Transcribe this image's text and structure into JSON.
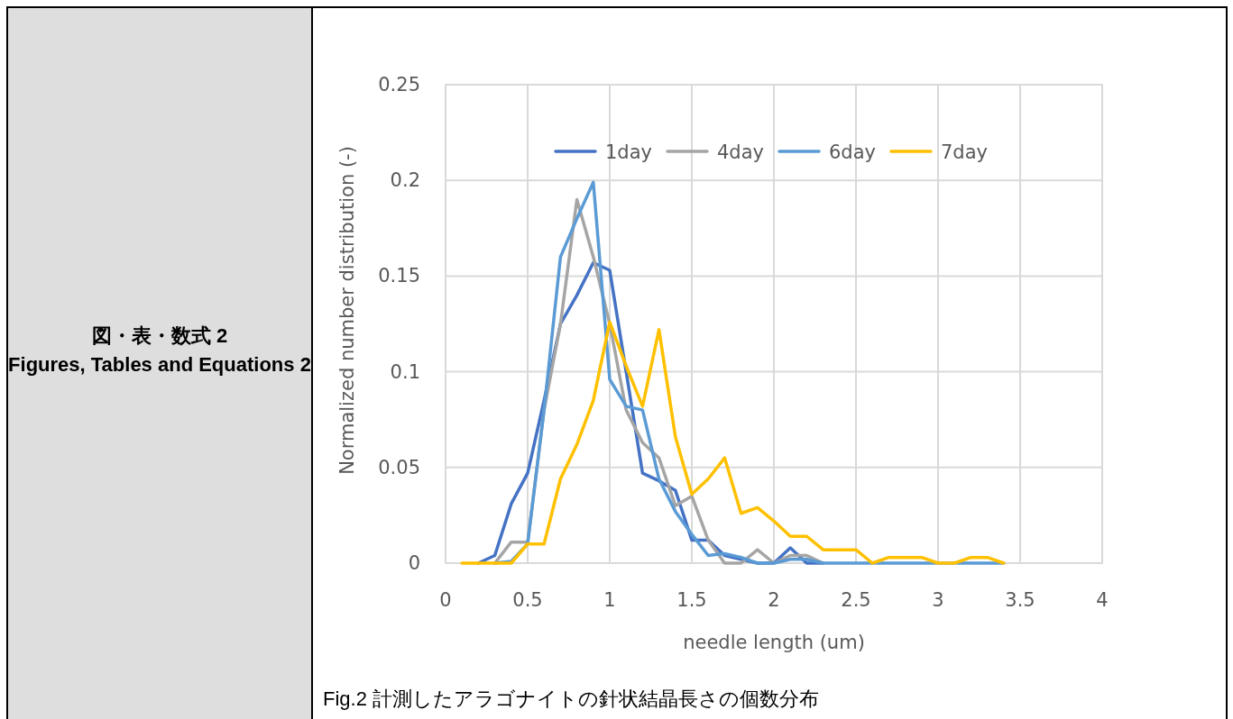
{
  "chart_data": {
    "type": "line",
    "xlabel": "needle length (um)",
    "ylabel": "Normalized number distribution (-)",
    "annotations": [
      "図・表・数式 2",
      "Figures, Tables and Equations 2",
      "Fig.2 計測したアラゴナイトの針状結晶長さの個数分布"
    ],
    "xlim": [
      0,
      4
    ],
    "xticks": [
      0,
      0.5,
      1,
      1.5,
      2,
      2.5,
      3,
      3.5,
      4
    ],
    "ylim": [
      0,
      0.25
    ],
    "yticks": [
      0,
      0.05,
      0.1,
      0.15,
      0.2,
      0.25
    ],
    "grid": true,
    "legend": "top",
    "marker": "none",
    "line_style": "solid",
    "series": [
      {
        "name": "1day",
        "color": "#4472c4",
        "x": [
          0.2,
          0.3,
          0.4,
          0.5,
          0.6,
          0.7,
          0.8,
          0.9,
          1.0,
          1.1,
          1.2,
          1.3,
          1.4,
          1.5,
          1.6,
          1.7,
          1.8,
          1.9,
          2.0,
          2.1,
          2.2,
          2.3
        ],
        "values": [
          0,
          0.004,
          0.031,
          0.047,
          0.085,
          0.125,
          0.14,
          0.157,
          0.153,
          0.1,
          0.047,
          0.043,
          0.038,
          0.012,
          0.012,
          0.004,
          0.002,
          0,
          0,
          0.008,
          0,
          0
        ]
      },
      {
        "name": "4day",
        "color": "#a5a5a5",
        "x": [
          0.3,
          0.4,
          0.5,
          0.6,
          0.7,
          0.8,
          0.9,
          1.0,
          1.1,
          1.2,
          1.3,
          1.4,
          1.5,
          1.6,
          1.7,
          1.8,
          1.9,
          2.0,
          2.1,
          2.2,
          2.3
        ],
        "values": [
          0,
          0.011,
          0.011,
          0.08,
          0.125,
          0.19,
          0.16,
          0.125,
          0.08,
          0.063,
          0.055,
          0.03,
          0.035,
          0.012,
          0,
          0,
          0.007,
          0,
          0.004,
          0.004,
          0
        ]
      },
      {
        "name": "6day",
        "color": "#5b9bd5",
        "x": [
          0.3,
          0.4,
          0.5,
          0.6,
          0.7,
          0.8,
          0.9,
          1.0,
          1.1,
          1.2,
          1.3,
          1.4,
          1.5,
          1.6,
          1.7,
          1.8,
          1.9,
          2.0,
          2.1,
          2.2,
          2.3,
          2.4,
          2.5,
          2.6,
          2.7,
          2.8,
          2.9,
          3.0,
          3.1,
          3.2,
          3.3,
          3.4
        ],
        "values": [
          0,
          0.001,
          0.01,
          0.08,
          0.16,
          0.18,
          0.199,
          0.096,
          0.082,
          0.08,
          0.044,
          0.027,
          0.015,
          0.004,
          0.005,
          0.003,
          0,
          0,
          0.002,
          0.002,
          0,
          0,
          0,
          0,
          0,
          0,
          0,
          0,
          0,
          0,
          0,
          0
        ]
      },
      {
        "name": "7day",
        "color": "#ffc000",
        "x": [
          0.1,
          0.2,
          0.3,
          0.4,
          0.5,
          0.6,
          0.7,
          0.8,
          0.9,
          1.0,
          1.1,
          1.2,
          1.3,
          1.4,
          1.5,
          1.6,
          1.7,
          1.8,
          1.9,
          2.0,
          2.1,
          2.2,
          2.3,
          2.4,
          2.5,
          2.6,
          2.7,
          2.8,
          2.9,
          3.0,
          3.1,
          3.2,
          3.3,
          3.4
        ],
        "values": [
          0,
          0,
          0,
          0,
          0.01,
          0.01,
          0.044,
          0.062,
          0.085,
          0.126,
          0.103,
          0.082,
          0.122,
          0.066,
          0.036,
          0.044,
          0.055,
          0.026,
          0.029,
          0.022,
          0.014,
          0.014,
          0.007,
          0.007,
          0.007,
          0,
          0.003,
          0.003,
          0.003,
          0,
          0,
          0.003,
          0.003,
          0
        ]
      }
    ]
  }
}
